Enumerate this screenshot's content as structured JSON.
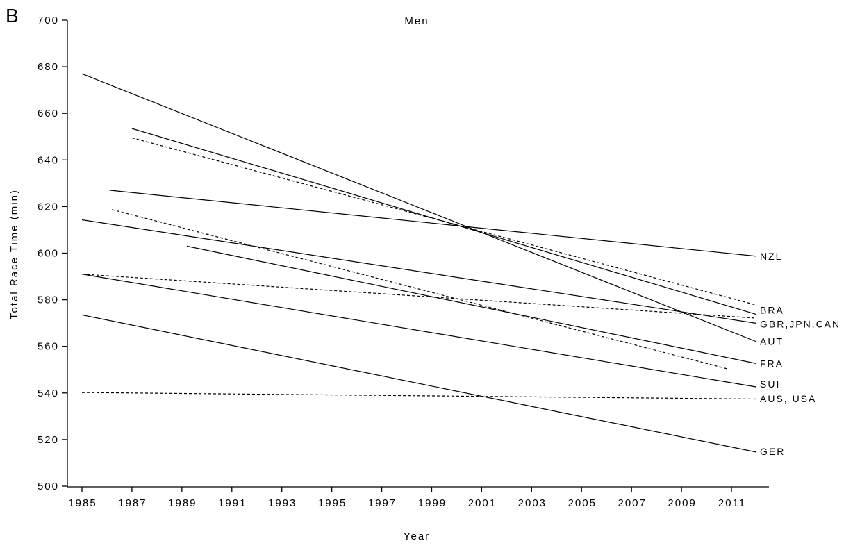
{
  "panel_label": "B",
  "chart_data": {
    "type": "line",
    "title": "Men",
    "xlabel": "Year",
    "ylabel": "Total Race Time (min)",
    "xlim": [
      1985,
      2012
    ],
    "ylim": [
      500,
      700
    ],
    "x_ticks": [
      1985,
      1987,
      1989,
      1991,
      1993,
      1995,
      1997,
      1999,
      2001,
      2003,
      2005,
      2007,
      2009,
      2011
    ],
    "y_ticks": [
      500,
      520,
      540,
      560,
      580,
      600,
      620,
      640,
      660,
      680,
      700
    ],
    "grid": false,
    "legend": "none",
    "series": [
      {
        "name": "NZL",
        "style": "solid",
        "x": [
          1986.1,
          2012
        ],
        "y": [
          627,
          598.7
        ]
      },
      {
        "name": "BRA",
        "style": "dashed",
        "x": [
          1987,
          2012
        ],
        "y": [
          649.5,
          577.7
        ]
      },
      {
        "name": "BRA",
        "style": "solid",
        "x": [
          1987,
          2012
        ],
        "y": [
          653.5,
          573.7
        ]
      },
      {
        "name": "GBR,JPN,CAN",
        "style": "dashed",
        "x": [
          1985,
          2012
        ],
        "y": [
          591,
          572.1
        ]
      },
      {
        "name": "GBR,JPN,CAN",
        "style": "solid",
        "x": [
          1985,
          2012
        ],
        "y": [
          614.3,
          569.9
        ]
      },
      {
        "name": "AUT",
        "style": "solid",
        "x": [
          1985,
          2012
        ],
        "y": [
          677,
          562
        ]
      },
      {
        "name": "FRA",
        "style": "solid",
        "x": [
          1989.2,
          2012
        ],
        "y": [
          603,
          552.6
        ]
      },
      {
        "name": "FRA",
        "style": "dashed",
        "x": [
          1986.2,
          2010.9
        ],
        "y": [
          618.7,
          550.2
        ]
      },
      {
        "name": "SUI",
        "style": "solid",
        "x": [
          1985,
          2012
        ],
        "y": [
          591,
          542.6
        ]
      },
      {
        "name": "AUS, USA",
        "style": "dashed",
        "x": [
          1985,
          2012
        ],
        "y": [
          540.2,
          537.4
        ]
      },
      {
        "name": "GER",
        "style": "solid",
        "x": [
          1985,
          2012
        ],
        "y": [
          573.5,
          514.6
        ]
      }
    ],
    "end_labels": [
      {
        "text": "NZL",
        "y": 598.7
      },
      {
        "text": "BRA",
        "y": 575.5
      },
      {
        "text": "GBR,JPN,CAN",
        "y": 569.6
      },
      {
        "text": "AUT",
        "y": 562.2
      },
      {
        "text": "FRA",
        "y": 552.6
      },
      {
        "text": "SUI",
        "y": 543.8
      },
      {
        "text": "AUS, USA",
        "y": 537.6
      },
      {
        "text": "GER",
        "y": 514.9
      }
    ]
  }
}
